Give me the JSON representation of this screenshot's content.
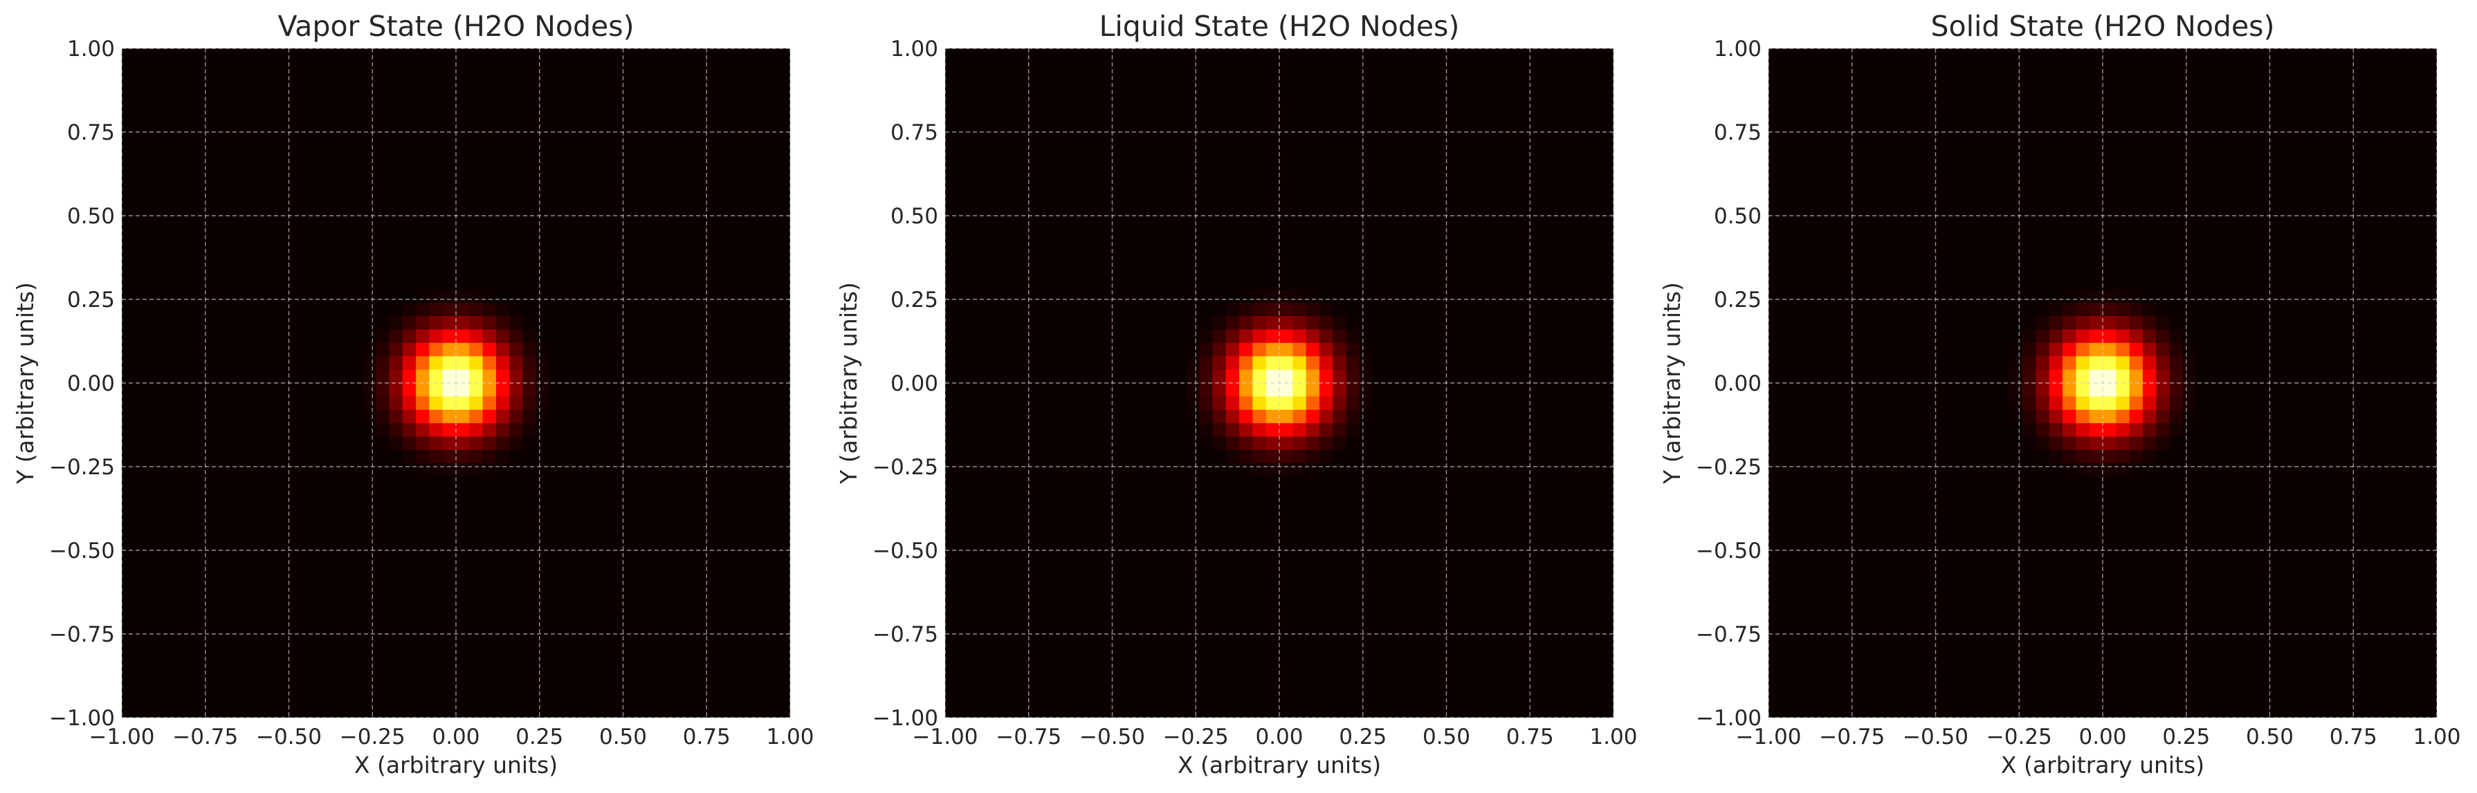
{
  "chart_data": [
    {
      "type": "heatmap",
      "title": "Vapor State (H2O Nodes)",
      "xlabel": "X (arbitrary units)",
      "ylabel": "Y (arbitrary units)",
      "xlim": [
        -1.0,
        1.0
      ],
      "ylim": [
        -1.0,
        1.0
      ],
      "xticks": [
        -1.0,
        -0.75,
        -0.5,
        -0.25,
        0.0,
        0.25,
        0.5,
        0.75,
        1.0
      ],
      "yticks": [
        -1.0,
        -0.75,
        -0.5,
        -0.25,
        0.0,
        0.25,
        0.5,
        0.75,
        1.0
      ],
      "xtick_labels": [
        "−1.00",
        "−0.75",
        "−0.50",
        "−0.25",
        "0.00",
        "0.25",
        "0.50",
        "0.75",
        "1.00"
      ],
      "ytick_labels": [
        "−1.00",
        "−0.75",
        "−0.50",
        "−0.25",
        "0.00",
        "0.25",
        "0.50",
        "0.75",
        "1.00"
      ],
      "grid": true,
      "colormap": "hot",
      "peak": {
        "x": 0.0,
        "y": 0.0
      },
      "sigma": 0.1,
      "grid_resolution": 50
    },
    {
      "type": "heatmap",
      "title": "Liquid State (H2O Nodes)",
      "xlabel": "X (arbitrary units)",
      "ylabel": "Y (arbitrary units)",
      "xlim": [
        -1.0,
        1.0
      ],
      "ylim": [
        -1.0,
        1.0
      ],
      "xticks": [
        -1.0,
        -0.75,
        -0.5,
        -0.25,
        0.0,
        0.25,
        0.5,
        0.75,
        1.0
      ],
      "yticks": [
        -1.0,
        -0.75,
        -0.5,
        -0.25,
        0.0,
        0.25,
        0.5,
        0.75,
        1.0
      ],
      "xtick_labels": [
        "−1.00",
        "−0.75",
        "−0.50",
        "−0.25",
        "0.00",
        "0.25",
        "0.50",
        "0.75",
        "1.00"
      ],
      "ytick_labels": [
        "−1.00",
        "−0.75",
        "−0.50",
        "−0.25",
        "0.00",
        "0.25",
        "0.50",
        "0.75",
        "1.00"
      ],
      "grid": true,
      "colormap": "hot",
      "peak": {
        "x": 0.0,
        "y": 0.0
      },
      "sigma": 0.1,
      "grid_resolution": 50
    },
    {
      "type": "heatmap",
      "title": "Solid State (H2O Nodes)",
      "xlabel": "X (arbitrary units)",
      "ylabel": "Y (arbitrary units)",
      "xlim": [
        -1.0,
        1.0
      ],
      "ylim": [
        -1.0,
        1.0
      ],
      "xticks": [
        -1.0,
        -0.75,
        -0.5,
        -0.25,
        0.0,
        0.25,
        0.5,
        0.75,
        1.0
      ],
      "yticks": [
        -1.0,
        -0.75,
        -0.5,
        -0.25,
        0.0,
        0.25,
        0.5,
        0.75,
        1.0
      ],
      "xtick_labels": [
        "−1.00",
        "−0.75",
        "−0.50",
        "−0.25",
        "0.00",
        "0.25",
        "0.50",
        "0.75",
        "1.00"
      ],
      "ytick_labels": [
        "−1.00",
        "−0.75",
        "−0.50",
        "−0.25",
        "0.00",
        "0.25",
        "0.50",
        "0.75",
        "1.00"
      ],
      "grid": true,
      "colormap": "hot",
      "peak": {
        "x": 0.0,
        "y": 0.0
      },
      "sigma": 0.1,
      "grid_resolution": 50
    }
  ],
  "colors": {
    "background": "#ffffff",
    "text": "#262626",
    "grid": "#cfcfcf",
    "heat_low": "#0b0000"
  }
}
